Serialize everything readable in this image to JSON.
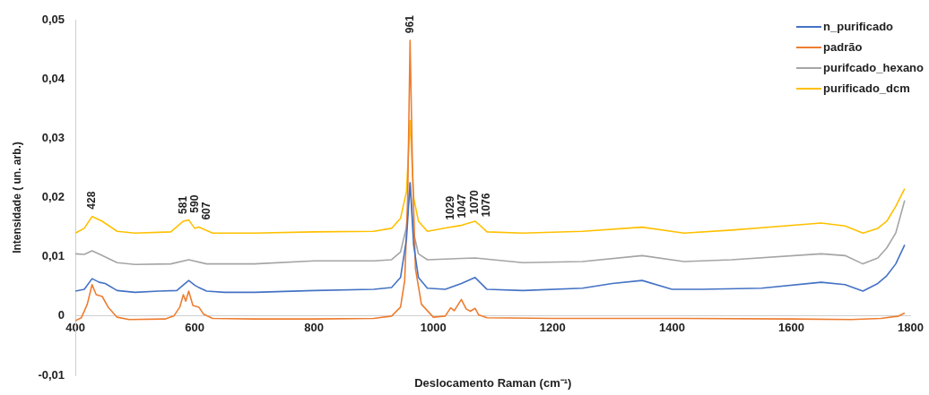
{
  "chart_data": {
    "type": "line",
    "xlabel": "Deslocamento Raman (cm⁻¹)",
    "ylabel": "Intensidade ( un. arb.)",
    "xlim": [
      400,
      1800
    ],
    "xticks": [
      400,
      600,
      800,
      1000,
      1200,
      1400,
      1600,
      1800
    ],
    "ylim": [
      -0.01,
      0.05
    ],
    "yticks": [
      {
        "value": -0.01,
        "label": "-0,01"
      },
      {
        "value": 0,
        "label": "0"
      },
      {
        "value": 0.01,
        "label": "0,01"
      },
      {
        "value": 0.02,
        "label": "0,02"
      },
      {
        "value": 0.03,
        "label": "0,03"
      },
      {
        "value": 0.04,
        "label": "0,04"
      },
      {
        "value": 0.05,
        "label": "0,05"
      }
    ],
    "grid": false,
    "legend": "top right",
    "marker": "none",
    "series": [
      {
        "name": "n_purificado",
        "color": "#4472c4",
        "x": [
          400,
          415,
          428,
          440,
          450,
          470,
          500,
          540,
          570,
          590,
          600,
          607,
          620,
          650,
          700,
          800,
          900,
          930,
          945,
          955,
          961,
          967,
          975,
          990,
          1020,
          1047,
          1070,
          1090,
          1150,
          1250,
          1300,
          1350,
          1400,
          1450,
          1550,
          1650,
          1690,
          1720,
          1745,
          1760,
          1775,
          1790
        ],
        "values": [
          0.0042,
          0.0045,
          0.0063,
          0.0057,
          0.0055,
          0.0043,
          0.004,
          0.0042,
          0.0043,
          0.006,
          0.0052,
          0.0048,
          0.0042,
          0.004,
          0.004,
          0.0043,
          0.0045,
          0.0048,
          0.0065,
          0.013,
          0.0225,
          0.012,
          0.0065,
          0.0047,
          0.0045,
          0.0055,
          0.0065,
          0.0045,
          0.0043,
          0.0047,
          0.0055,
          0.006,
          0.0045,
          0.0045,
          0.0047,
          0.0057,
          0.0053,
          0.0042,
          0.0055,
          0.0068,
          0.0088,
          0.012
        ]
      },
      {
        "name": "padrão",
        "color": "#ed7d31",
        "x": [
          400,
          410,
          420,
          428,
          435,
          445,
          455,
          470,
          490,
          550,
          565,
          575,
          581,
          585,
          590,
          597,
          607,
          615,
          630,
          700,
          800,
          900,
          930,
          945,
          952,
          957,
          961,
          965,
          970,
          980,
          1000,
          1020,
          1029,
          1035,
          1047,
          1055,
          1062,
          1070,
          1076,
          1090,
          1200,
          1400,
          1600,
          1700,
          1750,
          1780,
          1790
        ],
        "values": [
          -0.0008,
          -0.0003,
          0.002,
          0.0053,
          0.0036,
          0.0033,
          0.0015,
          -0.0002,
          -0.0006,
          -0.0005,
          0,
          0.0015,
          0.0036,
          0.0025,
          0.0042,
          0.0018,
          0.0015,
          0.0003,
          -0.0004,
          -0.0005,
          -0.0005,
          -0.0004,
          0,
          0.0015,
          0.006,
          0.02,
          0.0465,
          0.025,
          0.008,
          0.002,
          -0.0002,
          0,
          0.0014,
          0.0009,
          0.0028,
          0.0012,
          0.0008,
          0.0013,
          0.0002,
          -0.0003,
          -0.0004,
          -0.0004,
          -0.0005,
          -0.0006,
          -0.0004,
          0,
          0.0005
        ]
      },
      {
        "name": "purifcado_hexano",
        "color": "#a5a5a5",
        "x": [
          400,
          415,
          428,
          445,
          470,
          500,
          560,
          590,
          620,
          700,
          800,
          900,
          930,
          945,
          955,
          961,
          967,
          975,
          990,
          1070,
          1150,
          1250,
          1350,
          1420,
          1500,
          1650,
          1690,
          1720,
          1745,
          1760,
          1775,
          1790
        ],
        "values": [
          0.0105,
          0.0104,
          0.011,
          0.0102,
          0.009,
          0.0087,
          0.0088,
          0.0095,
          0.0088,
          0.0088,
          0.0093,
          0.0093,
          0.0095,
          0.0108,
          0.015,
          0.0225,
          0.014,
          0.0105,
          0.0095,
          0.0098,
          0.009,
          0.0092,
          0.0102,
          0.0092,
          0.0095,
          0.0105,
          0.0102,
          0.0088,
          0.0098,
          0.0115,
          0.014,
          0.0195
        ]
      },
      {
        "name": "purificado_dcm",
        "color": "#ffc000",
        "x": [
          400,
          415,
          428,
          445,
          470,
          500,
          560,
          581,
          590,
          600,
          607,
          630,
          700,
          800,
          900,
          930,
          945,
          955,
          961,
          967,
          975,
          990,
          1029,
          1047,
          1070,
          1076,
          1090,
          1150,
          1250,
          1350,
          1420,
          1500,
          1650,
          1690,
          1720,
          1745,
          1760,
          1775,
          1790
        ],
        "values": [
          0.014,
          0.0148,
          0.0168,
          0.016,
          0.0143,
          0.014,
          0.0142,
          0.016,
          0.0162,
          0.0148,
          0.015,
          0.014,
          0.014,
          0.0142,
          0.0143,
          0.0148,
          0.0165,
          0.021,
          0.033,
          0.02,
          0.016,
          0.0143,
          0.015,
          0.0153,
          0.016,
          0.0155,
          0.0142,
          0.014,
          0.0143,
          0.015,
          0.014,
          0.0145,
          0.0157,
          0.0152,
          0.014,
          0.0148,
          0.016,
          0.0185,
          0.0215
        ]
      }
    ],
    "annotations": [
      {
        "text": "428",
        "x": 428,
        "y": 0.0168
      },
      {
        "text": "581",
        "x": 581,
        "y": 0.016
      },
      {
        "text": "590",
        "x": 590,
        "y": 0.0162
      },
      {
        "text": "607",
        "x": 607,
        "y": 0.015
      },
      {
        "text": "961",
        "x": 961,
        "y": 0.0465
      },
      {
        "text": "1029",
        "x": 1029,
        "y": 0.015
      },
      {
        "text": "1047",
        "x": 1047,
        "y": 0.0153
      },
      {
        "text": "1070",
        "x": 1070,
        "y": 0.016
      },
      {
        "text": "1076",
        "x": 1076,
        "y": 0.0155
      }
    ]
  }
}
